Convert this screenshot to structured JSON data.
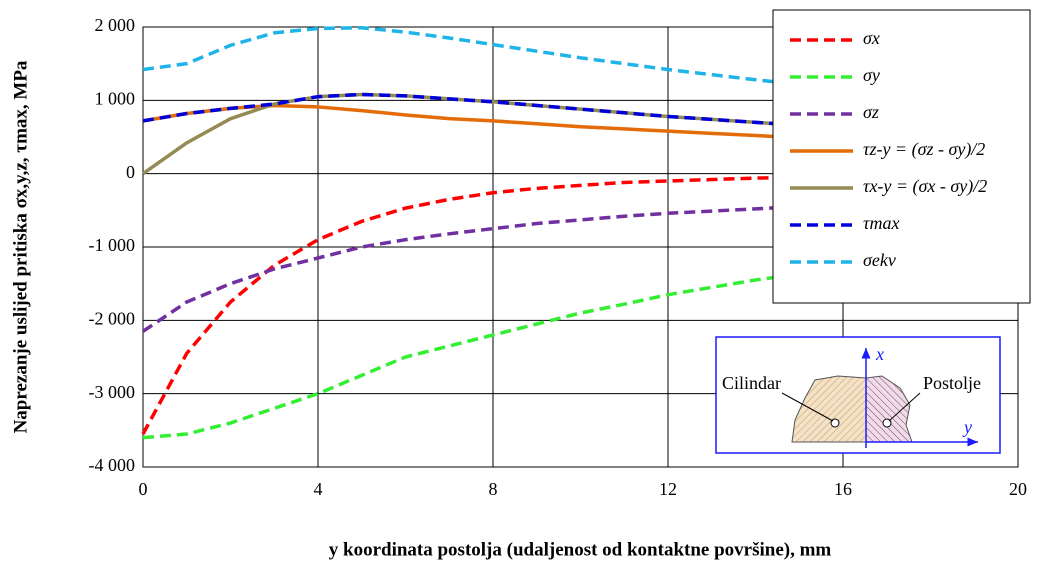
{
  "chart_data": {
    "type": "line",
    "xlabel": "y koordinata postolja (udaljenost od kontaktne površine), mm",
    "ylabel": "Naprezanje uslijed pritiska σx,y,z, τmax, MPa",
    "x": [
      0,
      1,
      2,
      3,
      4,
      5,
      6,
      7,
      8,
      9,
      10,
      11,
      12,
      13,
      14,
      15,
      16,
      17,
      18,
      19,
      20
    ],
    "series": [
      {
        "name": "σx",
        "color": "#ff0000",
        "dashed": true,
        "values": [
          -3550,
          -2450,
          -1750,
          -1250,
          -900,
          -650,
          -470,
          -350,
          -260,
          -200,
          -160,
          -120,
          -100,
          -80,
          -60,
          -50,
          -40,
          -35,
          -30,
          -25,
          -20
        ]
      },
      {
        "name": "σy",
        "color": "#33ee33",
        "dashed": true,
        "values": [
          -3600,
          -3550,
          -3400,
          -3200,
          -3000,
          -2750,
          -2500,
          -2350,
          -2200,
          -2050,
          -1900,
          -1780,
          -1650,
          -1550,
          -1450,
          -1370,
          -1300,
          -1230,
          -1170,
          -1120,
          -1070
        ]
      },
      {
        "name": "σz",
        "color": "#7030a0",
        "dashed": true,
        "values": [
          -2150,
          -1750,
          -1500,
          -1300,
          -1150,
          -1000,
          -900,
          -820,
          -750,
          -680,
          -630,
          -580,
          -540,
          -510,
          -480,
          -450,
          -420,
          -400,
          -380,
          -360,
          -340
        ]
      },
      {
        "name": "τz-y = (σz - σy)/2",
        "color": "#e36c09",
        "dashed": false,
        "values": [
          720,
          820,
          890,
          930,
          910,
          860,
          800,
          750,
          720,
          680,
          640,
          610,
          580,
          550,
          520,
          490,
          470,
          450,
          430,
          410,
          390
        ]
      },
      {
        "name": "τx-y = (σx - σy)/2",
        "color": "#948a54",
        "dashed": false,
        "values": [
          0,
          420,
          750,
          950,
          1050,
          1080,
          1060,
          1020,
          980,
          930,
          880,
          830,
          780,
          740,
          700,
          660,
          630,
          600,
          570,
          540,
          520
        ]
      },
      {
        "name": "τmax",
        "color": "#0000dd",
        "dashed": true,
        "values": [
          720,
          820,
          890,
          950,
          1050,
          1080,
          1060,
          1020,
          980,
          930,
          880,
          830,
          780,
          740,
          700,
          660,
          630,
          600,
          570,
          540,
          520
        ]
      },
      {
        "name": "σekv",
        "color": "#1fb4e8",
        "dashed": true,
        "values": [
          1420,
          1500,
          1750,
          1920,
          1980,
          1990,
          1930,
          1850,
          1760,
          1670,
          1580,
          1500,
          1420,
          1350,
          1280,
          1220,
          1170,
          1120,
          1080,
          1040,
          1000
        ]
      }
    ],
    "xlim": [
      0,
      20
    ],
    "xticks": [
      0,
      4,
      8,
      12,
      16,
      20
    ],
    "ylim": [
      -4000,
      2000
    ],
    "yticks": [
      {
        "value": -4000,
        "label": "-4 000"
      },
      {
        "value": -3000,
        "label": "-3 000"
      },
      {
        "value": -2000,
        "label": "-2 000"
      },
      {
        "value": -1000,
        "label": "-1 000"
      },
      0,
      {
        "value": 1000,
        "label": "1 000"
      },
      {
        "value": 2000,
        "label": "2 000"
      }
    ],
    "grid": true,
    "legend": "upper right",
    "inset": {
      "left": "Cilindar",
      "right": "Postolje",
      "xaxis": "x",
      "yaxis": "y"
    }
  }
}
